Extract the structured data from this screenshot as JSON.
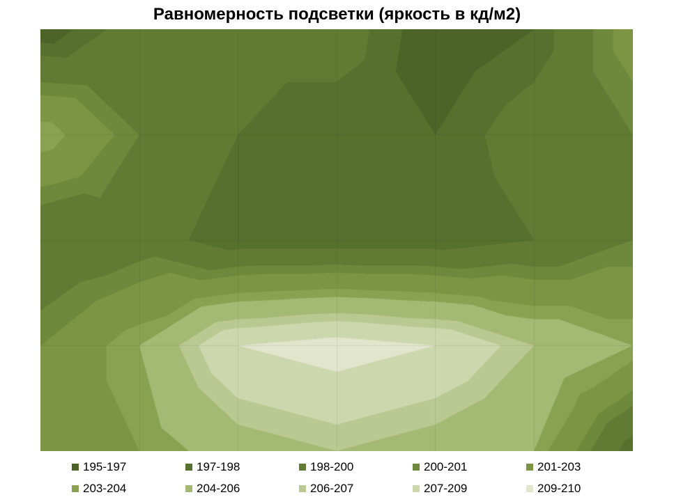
{
  "chart_data": {
    "type": "heatmap",
    "subtype": "filled-contour-top-view",
    "title": "Равномерность подсветки (яркость в кд/м2)",
    "legend_position": "bottom",
    "value_range": [
      195,
      210
    ],
    "grid_on": true,
    "bands": [
      {
        "label": "195-197",
        "min": 195,
        "max": 197,
        "color": "#4c6428"
      },
      {
        "label": "197-198",
        "min": 197,
        "max": 198,
        "color": "#56702e"
      },
      {
        "label": "198-200",
        "min": 198,
        "max": 200,
        "color": "#617b34"
      },
      {
        "label": "200-201",
        "min": 200,
        "max": 201,
        "color": "#6e883c"
      },
      {
        "label": "201-203",
        "min": 201,
        "max": 203,
        "color": "#7b9545"
      },
      {
        "label": "203-204",
        "min": 203,
        "max": 204,
        "color": "#89a251"
      },
      {
        "label": "204-206",
        "min": 204,
        "max": 206,
        "color": "#a4ba74"
      },
      {
        "label": "206-207",
        "min": 206,
        "max": 207,
        "color": "#bac992"
      },
      {
        "label": "207-209",
        "min": 207,
        "max": 209,
        "color": "#cdd7ad"
      },
      {
        "label": "209-210",
        "min": 209,
        "max": 210,
        "color": "#e0e5cc"
      }
    ],
    "grid": [
      [
        196,
        199,
        198,
        199,
        196,
        197,
        202
      ],
      [
        204,
        200,
        198,
        197,
        197,
        199,
        200
      ],
      [
        198,
        199,
        197,
        197,
        197,
        198,
        200
      ],
      [
        201,
        204,
        209,
        210,
        209,
        206,
        204
      ],
      [
        202,
        203,
        205,
        206,
        205,
        204,
        197
      ]
    ]
  }
}
